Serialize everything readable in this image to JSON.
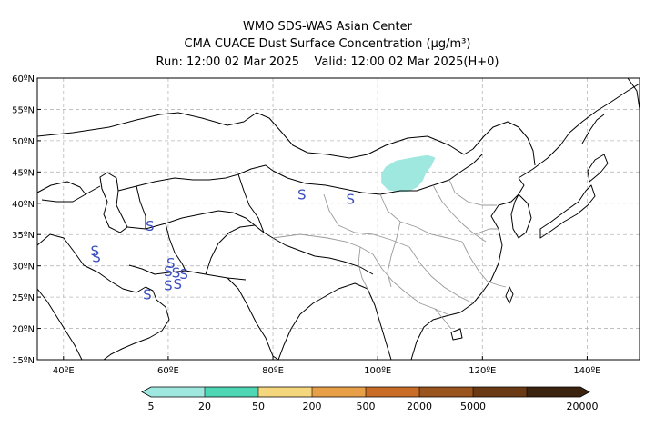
{
  "header": {
    "line1": "WMO SDS-WAS Asian Center",
    "line2": "CMA CUACE Dust Surface Concentration (μg/m³)",
    "line3": "Run: 12:00 02 Mar 2025    Valid: 12:00 02 Mar 2025(H+0)"
  },
  "map": {
    "lon_range": [
      35,
      150
    ],
    "lat_range": [
      15,
      60
    ],
    "lon_ticks": [
      {
        "value": 40,
        "label": "40ºE"
      },
      {
        "value": 60,
        "label": "60ºE"
      },
      {
        "value": 80,
        "label": "80ºE"
      },
      {
        "value": 100,
        "label": "100ºE"
      },
      {
        "value": 120,
        "label": "120ºE"
      },
      {
        "value": 140,
        "label": "140ºE"
      }
    ],
    "lat_ticks": [
      {
        "value": 15,
        "label": "15ºN"
      },
      {
        "value": 20,
        "label": "20ºN"
      },
      {
        "value": 25,
        "label": "25ºN"
      },
      {
        "value": 30,
        "label": "30ºN"
      },
      {
        "value": 35,
        "label": "35ºN"
      },
      {
        "value": 40,
        "label": "40ºN"
      },
      {
        "value": 45,
        "label": "45ºN"
      },
      {
        "value": 50,
        "label": "50ºN"
      },
      {
        "value": 55,
        "label": "55ºN"
      },
      {
        "value": 60,
        "label": "60ºN"
      }
    ],
    "grid": "dashed",
    "dust_area": {
      "level": "5-20",
      "color": "#9fe8e0",
      "polygon_lonlat": [
        [
          101.5,
          45.8
        ],
        [
          103.5,
          46.8
        ],
        [
          106.5,
          47.3
        ],
        [
          109.5,
          47.7
        ],
        [
          111.0,
          47.3
        ],
        [
          110.3,
          46.0
        ],
        [
          109.2,
          44.8
        ],
        [
          108.6,
          43.6
        ],
        [
          107.6,
          42.6
        ],
        [
          106.0,
          41.9
        ],
        [
          104.0,
          41.8
        ],
        [
          102.0,
          42.1
        ],
        [
          100.7,
          43.2
        ],
        [
          100.7,
          44.7
        ]
      ]
    },
    "dust_marks": [
      {
        "symbol": "S",
        "lon": 85.5,
        "lat": 41.5
      },
      {
        "symbol": "S",
        "lon": 94.8,
        "lat": 40.8
      },
      {
        "symbol": "S",
        "lon": 56.5,
        "lat": 36.5
      },
      {
        "symbol": "S",
        "lon": 46.0,
        "lat": 32.5
      },
      {
        "symbol": "S",
        "lon": 46.3,
        "lat": 31.5
      },
      {
        "symbol": "S",
        "lon": 60.5,
        "lat": 30.5
      },
      {
        "symbol": "S",
        "lon": 60.0,
        "lat": 29.2
      },
      {
        "symbol": "S",
        "lon": 61.5,
        "lat": 29.0
      },
      {
        "symbol": "S",
        "lon": 63.0,
        "lat": 28.8
      },
      {
        "symbol": "S",
        "lon": 60.0,
        "lat": 27.0
      },
      {
        "symbol": "S",
        "lon": 61.8,
        "lat": 27.2
      },
      {
        "symbol": "S",
        "lon": 56.0,
        "lat": 25.5
      }
    ]
  },
  "colorbar": {
    "colors": [
      "#9fe8e0",
      "#4fd6b4",
      "#f4d67c",
      "#e8a048",
      "#c86c28",
      "#9a541e",
      "#6a3a14",
      "#3a2410"
    ],
    "labels": [
      "5",
      "20",
      "50",
      "200",
      "500",
      "2000",
      "5000",
      "20000"
    ]
  }
}
